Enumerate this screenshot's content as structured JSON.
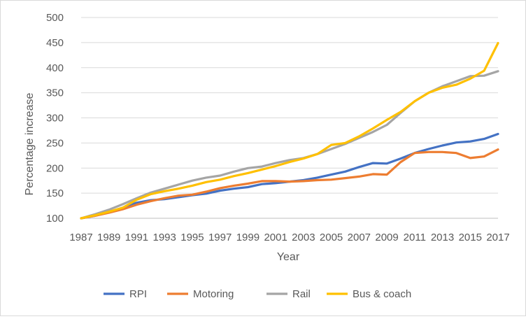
{
  "chart_data": {
    "type": "line",
    "title": "",
    "xlabel": "Year",
    "ylabel": "Percentage increase",
    "ylim": [
      100,
      500
    ],
    "yticks": [
      100,
      150,
      200,
      250,
      300,
      350,
      400,
      450,
      500
    ],
    "xticks": [
      1987,
      1989,
      1991,
      1993,
      1995,
      1997,
      1999,
      2001,
      2003,
      2005,
      2007,
      2009,
      2011,
      2013,
      2015,
      2017
    ],
    "x": [
      1987,
      1988,
      1989,
      1990,
      1991,
      1992,
      1993,
      1994,
      1995,
      1996,
      1997,
      1998,
      1999,
      2000,
      2001,
      2002,
      2003,
      2004,
      2005,
      2006,
      2007,
      2008,
      2009,
      2010,
      2011,
      2012,
      2013,
      2014,
      2015,
      2016,
      2017
    ],
    "grid": "horizontal",
    "legend_position": "bottom",
    "series": [
      {
        "name": "RPI",
        "color": "#4472C4",
        "values": [
          100,
          105,
          112,
          121,
          131,
          136,
          138,
          142,
          146,
          149,
          155,
          159,
          162,
          168,
          170,
          173,
          176,
          181,
          187,
          193,
          202,
          210,
          209,
          219,
          230,
          238,
          245,
          251,
          253,
          258,
          268
        ]
      },
      {
        "name": "Motoring",
        "color": "#ED7D31",
        "values": [
          100,
          105,
          111,
          118,
          127,
          134,
          140,
          145,
          147,
          153,
          160,
          165,
          169,
          174,
          174,
          173,
          174,
          176,
          177,
          180,
          183,
          188,
          187,
          212,
          230,
          232,
          232,
          230,
          220,
          223,
          237
        ]
      },
      {
        "name": "Rail",
        "color": "#A5A5A5",
        "values": [
          100,
          108,
          117,
          128,
          140,
          151,
          159,
          167,
          175,
          181,
          185,
          193,
          200,
          203,
          210,
          216,
          220,
          228,
          238,
          248,
          260,
          272,
          286,
          310,
          333,
          350,
          363,
          373,
          383,
          384,
          393
        ]
      },
      {
        "name": "Bus & coach",
        "color": "#FFC000",
        "values": [
          100,
          106,
          113,
          121,
          137,
          148,
          154,
          159,
          165,
          172,
          177,
          184,
          190,
          197,
          204,
          212,
          219,
          228,
          246,
          250,
          263,
          279,
          296,
          312,
          333,
          350,
          360,
          366,
          378,
          394,
          449
        ]
      }
    ]
  }
}
